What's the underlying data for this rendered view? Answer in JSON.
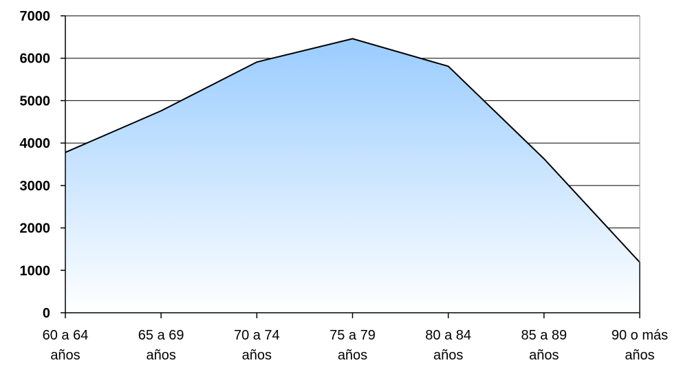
{
  "chart_data": {
    "type": "area",
    "title": "",
    "xlabel": "",
    "ylabel": "",
    "categories": [
      [
        "60 a 64",
        "años"
      ],
      [
        "65 a 69",
        "años"
      ],
      [
        "70 a 74",
        "años"
      ],
      [
        "75 a 79",
        "años"
      ],
      [
        "80 a 84",
        "años"
      ],
      [
        "85 a 89",
        "años"
      ],
      [
        "90 o más",
        "años"
      ]
    ],
    "values": [
      3780,
      4760,
      5910,
      6460,
      5810,
      3630,
      1190
    ],
    "ylim": [
      0,
      7000
    ],
    "yticks": [
      0,
      1000,
      2000,
      3000,
      4000,
      5000,
      6000,
      7000
    ],
    "grid": true,
    "legend": "none",
    "colors": {
      "fill_top": "#99ccff",
      "fill_bottom": "#ffffff",
      "line": "#000000",
      "grid": "#000000"
    }
  }
}
